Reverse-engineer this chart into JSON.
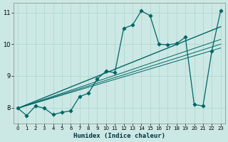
{
  "title": "",
  "xlabel": "Humidex (Indice chaleur)",
  "ylabel": "",
  "xlim": [
    -0.5,
    23.5
  ],
  "ylim": [
    7.5,
    11.3
  ],
  "yticks": [
    8,
    9,
    10,
    11
  ],
  "xticks": [
    0,
    1,
    2,
    3,
    4,
    5,
    6,
    7,
    8,
    9,
    10,
    11,
    12,
    13,
    14,
    15,
    16,
    17,
    18,
    19,
    20,
    21,
    22,
    23
  ],
  "bg_color": "#cce8e4",
  "grid_color": "#b0d8d0",
  "line_color": "#006666",
  "data_x": [
    0,
    1,
    2,
    3,
    4,
    5,
    6,
    7,
    8,
    9,
    10,
    11,
    12,
    13,
    14,
    15,
    16,
    17,
    18,
    19,
    20,
    21,
    22,
    23
  ],
  "data_y": [
    7.98,
    7.75,
    8.05,
    7.98,
    7.78,
    7.85,
    7.9,
    8.35,
    8.45,
    8.9,
    9.15,
    9.1,
    10.5,
    10.6,
    11.05,
    10.9,
    10.0,
    9.98,
    10.02,
    10.22,
    8.1,
    8.05,
    9.78,
    11.05
  ],
  "trend_lines": [
    {
      "x0": 0,
      "y0": 7.98,
      "x1": 23,
      "y1": 10.55,
      "lw": 1.0
    },
    {
      "x0": 0,
      "y0": 7.98,
      "x1": 23,
      "y1": 10.0,
      "lw": 0.8
    },
    {
      "x0": 0,
      "y0": 7.98,
      "x1": 23,
      "y1": 10.15,
      "lw": 0.8
    },
    {
      "x0": 0,
      "y0": 7.98,
      "x1": 23,
      "y1": 9.88,
      "lw": 0.8
    }
  ]
}
